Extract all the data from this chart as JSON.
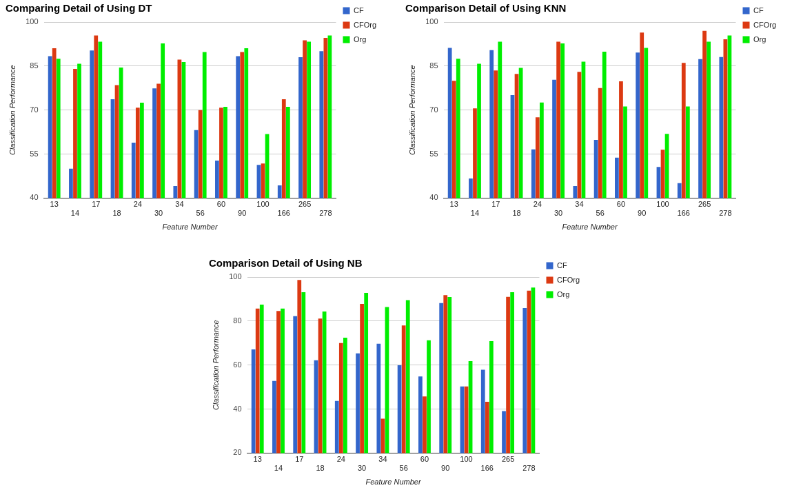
{
  "chart_data": [
    {
      "type": "bar",
      "title": "Comparing Detail of Using DT",
      "xlabel": "Feature Number",
      "ylabel": "Classification Performance",
      "categories": [
        "13",
        "14",
        "17",
        "18",
        "24",
        "30",
        "34",
        "56",
        "60",
        "90",
        "100",
        "166",
        "265",
        "278"
      ],
      "ylim": [
        40,
        100
      ],
      "yticks": [
        40,
        55,
        70,
        85,
        100
      ],
      "grid": "y",
      "legend": "right",
      "series": [
        {
          "name": "CF",
          "color": "#3366cc",
          "values": [
            88.4,
            50.0,
            90.3,
            73.7,
            58.9,
            77.4,
            44.1,
            63.2,
            52.8,
            88.4,
            51.3,
            44.3,
            88.0,
            90.1
          ]
        },
        {
          "name": "CFOrg",
          "color": "#dc3912",
          "values": [
            91.1,
            84.0,
            95.4,
            78.5,
            70.8,
            79.0,
            87.2,
            70.0,
            70.8,
            89.8,
            51.8,
            73.7,
            93.8,
            94.6
          ]
        },
        {
          "name": "Org",
          "color": "#00ee00",
          "values": [
            87.5,
            85.8,
            93.3,
            84.5,
            72.5,
            92.7,
            86.4,
            89.8,
            71.1,
            91.1,
            61.8,
            71.1,
            93.3,
            95.4
          ]
        }
      ]
    },
    {
      "type": "bar",
      "title": "Comparison Detail of Using KNN",
      "xlabel": "Feature Number",
      "ylabel": "Classification Performance",
      "categories": [
        "13",
        "14",
        "17",
        "18",
        "24",
        "30",
        "34",
        "56",
        "60",
        "90",
        "100",
        "166",
        "265",
        "278"
      ],
      "ylim": [
        40,
        100
      ],
      "yticks": [
        40,
        55,
        70,
        85,
        100
      ],
      "grid": "y",
      "legend": "right",
      "series": [
        {
          "name": "CF",
          "color": "#3366cc",
          "values": [
            91.2,
            46.7,
            90.4,
            75.1,
            56.6,
            80.3,
            44.1,
            59.8,
            53.8,
            89.6,
            50.6,
            45.1,
            87.4,
            88.1
          ]
        },
        {
          "name": "CFOrg",
          "color": "#dc3912",
          "values": [
            80.0,
            70.6,
            83.5,
            82.3,
            67.5,
            93.3,
            83.0,
            77.5,
            79.8,
            96.4,
            56.5,
            86.1,
            97.0,
            94.1
          ]
        },
        {
          "name": "Org",
          "color": "#00ee00",
          "values": [
            87.5,
            85.8,
            93.3,
            84.4,
            72.6,
            92.7,
            86.5,
            89.9,
            71.2,
            91.2,
            61.9,
            71.2,
            93.3,
            95.4
          ]
        }
      ]
    },
    {
      "type": "bar",
      "title": "Comparison Detail of Using NB",
      "xlabel": "Feature Number",
      "ylabel": "Classification Performance",
      "categories": [
        "13",
        "14",
        "17",
        "18",
        "24",
        "30",
        "34",
        "56",
        "60",
        "90",
        "100",
        "166",
        "265",
        "278"
      ],
      "ylim": [
        20,
        100
      ],
      "yticks": [
        20,
        40,
        60,
        80,
        100
      ],
      "grid": "y",
      "legend": "right",
      "series": [
        {
          "name": "CF",
          "color": "#3366cc",
          "values": [
            67.1,
            52.8,
            82.2,
            62.2,
            43.7,
            65.3,
            69.7,
            59.9,
            54.8,
            88.2,
            50.3,
            57.9,
            39.1,
            85.9
          ]
        },
        {
          "name": "CFOrg",
          "color": "#dc3912",
          "values": [
            85.7,
            84.6,
            98.7,
            81.1,
            70.0,
            87.8,
            35.6,
            78.0,
            45.7,
            91.8,
            50.3,
            43.3,
            91.0,
            93.8
          ]
        },
        {
          "name": "Org",
          "color": "#00ee00",
          "values": [
            87.5,
            85.7,
            93.1,
            84.3,
            72.4,
            92.8,
            86.4,
            89.5,
            71.3,
            90.9,
            61.8,
            70.9,
            93.1,
            95.2
          ]
        }
      ]
    }
  ]
}
